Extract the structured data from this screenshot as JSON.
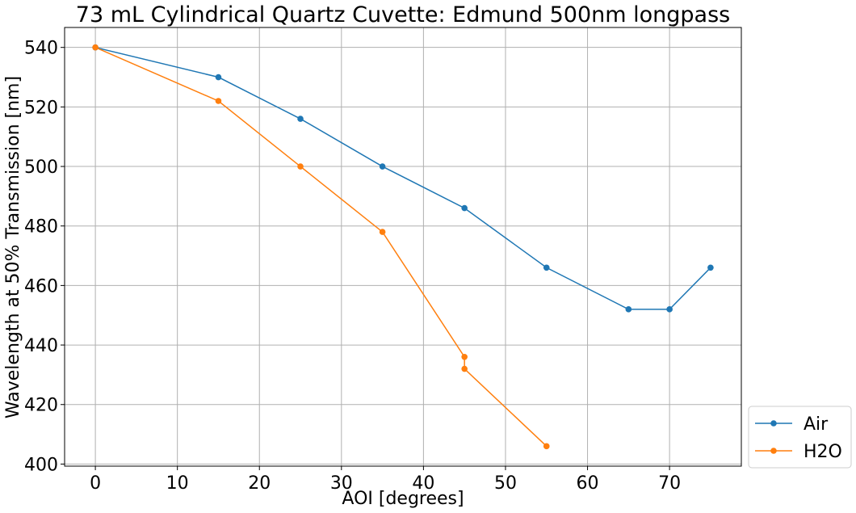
{
  "chart_data": {
    "type": "line",
    "title": "73 mL Cylindrical Quartz Cuvette: Edmund 500nm longpass",
    "xlabel": "AOI [degrees]",
    "ylabel": "Wavelength at 50% Transmission [nm]",
    "xlim": [
      -3.75,
      78.75
    ],
    "ylim": [
      399.3,
      546.7
    ],
    "xticks": [
      0,
      10,
      20,
      30,
      40,
      50,
      60,
      70
    ],
    "yticks": [
      400,
      420,
      440,
      460,
      480,
      500,
      520,
      540
    ],
    "grid": true,
    "legend_position": "outside-bottom-right",
    "series": [
      {
        "name": "Air",
        "color": "#1f77b4",
        "marker": "circle",
        "x": [
          0,
          15,
          25,
          35,
          45,
          55,
          65,
          70,
          75
        ],
        "y": [
          540,
          530,
          516,
          500,
          486,
          466,
          452,
          452,
          466
        ]
      },
      {
        "name": "H2O",
        "color": "#ff7f0e",
        "marker": "circle",
        "x": [
          0,
          15,
          25,
          35,
          45,
          45,
          55
        ],
        "y": [
          540,
          522,
          500,
          478,
          436,
          432,
          406
        ]
      }
    ]
  }
}
